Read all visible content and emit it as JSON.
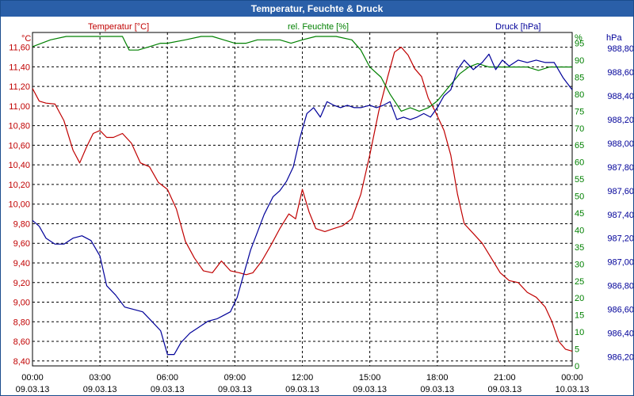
{
  "window": {
    "title": "Temperatur, Feuchte & Druck"
  },
  "colors": {
    "temperature": "#c00000",
    "humidity": "#008000",
    "pressure": "#000099",
    "grid": "#000000",
    "title_bar": "#2a5fa8"
  },
  "chart_data": {
    "type": "line",
    "title": "Temperatur, Feuchte & Druck",
    "grid": true,
    "x_ticks": [
      {
        "hours": 0,
        "time": "00:00",
        "date": "09.03.13"
      },
      {
        "hours": 3,
        "time": "03:00",
        "date": "09.03.13"
      },
      {
        "hours": 6,
        "time": "06:00",
        "date": "09.03.13"
      },
      {
        "hours": 9,
        "time": "09:00",
        "date": "09.03.13"
      },
      {
        "hours": 12,
        "time": "12:00",
        "date": "09.03.13"
      },
      {
        "hours": 15,
        "time": "15:00",
        "date": "09.03.13"
      },
      {
        "hours": 18,
        "time": "18:00",
        "date": "09.03.13"
      },
      {
        "hours": 21,
        "time": "21:00",
        "date": "09.03.13"
      },
      {
        "hours": 24,
        "time": "00:00",
        "date": "10.03.13"
      }
    ],
    "xlim": [
      0,
      24
    ],
    "axes": {
      "temperature": {
        "label": "Temperatur [°C]",
        "unit": "°C",
        "ylim": [
          8.35,
          11.75
        ],
        "ticks": [
          "8,40",
          "8,60",
          "8,80",
          "9,00",
          "9,20",
          "9,40",
          "9,60",
          "9,80",
          "10,00",
          "10,20",
          "10,40",
          "10,60",
          "10,80",
          "11,00",
          "11,20",
          "11,40",
          "11,60"
        ],
        "tick_values": [
          8.4,
          8.6,
          8.8,
          9.0,
          9.2,
          9.4,
          9.6,
          9.8,
          10.0,
          10.2,
          10.4,
          10.6,
          10.8,
          11.0,
          11.2,
          11.4,
          11.6
        ]
      },
      "humidity": {
        "label": "rel. Feuchte [%]",
        "unit": "%",
        "ylim": [
          0,
          98.17
        ],
        "ticks": [
          "0",
          "5",
          "10",
          "15",
          "20",
          "25",
          "30",
          "35",
          "40",
          "45",
          "50",
          "55",
          "60",
          "65",
          "70",
          "75",
          "80",
          "85",
          "90",
          "95"
        ],
        "tick_values": [
          0,
          5,
          10,
          15,
          20,
          25,
          30,
          35,
          40,
          45,
          50,
          55,
          60,
          65,
          70,
          75,
          80,
          85,
          90,
          95
        ]
      },
      "pressure": {
        "label": "Druck [hPa]",
        "unit": "hPa",
        "ylim": [
          986.124,
          988.933
        ],
        "ticks": [
          "986,20",
          "986,40",
          "986,60",
          "986,80",
          "987,00",
          "987,20",
          "987,40",
          "987,60",
          "987,80",
          "988,00",
          "988,20",
          "988,40",
          "988,60",
          "988,80"
        ],
        "tick_values": [
          986.2,
          986.4,
          986.6,
          986.8,
          987.0,
          987.2,
          987.4,
          987.6,
          987.8,
          988.0,
          988.2,
          988.4,
          988.6,
          988.8
        ]
      }
    },
    "series": [
      {
        "name": "Temperatur [°C]",
        "axis": "temperature",
        "points": [
          [
            0,
            11.18
          ],
          [
            0.3,
            11.05
          ],
          [
            0.6,
            11.03
          ],
          [
            1.0,
            11.02
          ],
          [
            1.4,
            10.85
          ],
          [
            1.8,
            10.55
          ],
          [
            2.1,
            10.42
          ],
          [
            2.4,
            10.58
          ],
          [
            2.7,
            10.72
          ],
          [
            3.0,
            10.75
          ],
          [
            3.3,
            10.68
          ],
          [
            3.6,
            10.68
          ],
          [
            4.0,
            10.72
          ],
          [
            4.4,
            10.62
          ],
          [
            4.8,
            10.42
          ],
          [
            5.2,
            10.38
          ],
          [
            5.6,
            10.22
          ],
          [
            6.0,
            10.15
          ],
          [
            6.4,
            9.95
          ],
          [
            6.8,
            9.62
          ],
          [
            7.2,
            9.45
          ],
          [
            7.6,
            9.32
          ],
          [
            8.0,
            9.3
          ],
          [
            8.4,
            9.42
          ],
          [
            8.8,
            9.32
          ],
          [
            9.2,
            9.3
          ],
          [
            9.5,
            9.28
          ],
          [
            9.8,
            9.3
          ],
          [
            10.2,
            9.42
          ],
          [
            10.6,
            9.58
          ],
          [
            11.0,
            9.75
          ],
          [
            11.4,
            9.9
          ],
          [
            11.7,
            9.85
          ],
          [
            12.0,
            10.15
          ],
          [
            12.3,
            9.92
          ],
          [
            12.6,
            9.75
          ],
          [
            13.0,
            9.72
          ],
          [
            13.4,
            9.75
          ],
          [
            13.8,
            9.78
          ],
          [
            14.2,
            9.85
          ],
          [
            14.6,
            10.1
          ],
          [
            15.0,
            10.5
          ],
          [
            15.4,
            10.95
          ],
          [
            15.8,
            11.3
          ],
          [
            16.1,
            11.55
          ],
          [
            16.4,
            11.6
          ],
          [
            16.7,
            11.52
          ],
          [
            17.0,
            11.38
          ],
          [
            17.3,
            11.3
          ],
          [
            17.6,
            11.08
          ],
          [
            17.9,
            10.95
          ],
          [
            18.3,
            10.75
          ],
          [
            18.6,
            10.5
          ],
          [
            18.9,
            10.1
          ],
          [
            19.2,
            9.8
          ],
          [
            19.6,
            9.7
          ],
          [
            20.0,
            9.6
          ],
          [
            20.4,
            9.45
          ],
          [
            20.8,
            9.3
          ],
          [
            21.2,
            9.22
          ],
          [
            21.6,
            9.2
          ],
          [
            22.0,
            9.1
          ],
          [
            22.4,
            9.05
          ],
          [
            22.8,
            8.95
          ],
          [
            23.1,
            8.8
          ],
          [
            23.4,
            8.6
          ],
          [
            23.7,
            8.52
          ],
          [
            24.0,
            8.5
          ]
        ]
      },
      {
        "name": "rel. Feuchte [%]",
        "axis": "humidity",
        "points": [
          [
            0,
            94
          ],
          [
            0.8,
            96
          ],
          [
            1.5,
            97
          ],
          [
            3.0,
            97
          ],
          [
            4.0,
            97
          ],
          [
            4.3,
            93
          ],
          [
            4.7,
            93
          ],
          [
            5.2,
            94
          ],
          [
            5.7,
            95
          ],
          [
            6.0,
            95
          ],
          [
            6.8,
            96
          ],
          [
            7.5,
            97
          ],
          [
            8.0,
            97
          ],
          [
            8.5,
            96
          ],
          [
            9.0,
            95
          ],
          [
            9.5,
            95
          ],
          [
            10.0,
            96
          ],
          [
            10.5,
            96
          ],
          [
            11.0,
            96
          ],
          [
            11.5,
            95
          ],
          [
            12.0,
            96
          ],
          [
            12.6,
            97
          ],
          [
            13.5,
            97
          ],
          [
            14.2,
            96
          ],
          [
            14.6,
            93
          ],
          [
            15.0,
            88
          ],
          [
            15.5,
            85
          ],
          [
            15.9,
            80
          ],
          [
            16.4,
            75
          ],
          [
            16.8,
            76
          ],
          [
            17.2,
            75
          ],
          [
            17.6,
            76
          ],
          [
            18.0,
            78
          ],
          [
            18.5,
            82
          ],
          [
            19.0,
            86
          ],
          [
            19.4,
            88
          ],
          [
            19.8,
            89
          ],
          [
            20.3,
            88
          ],
          [
            21.0,
            88
          ],
          [
            21.5,
            88
          ],
          [
            22.0,
            88
          ],
          [
            22.5,
            87
          ],
          [
            23.0,
            88
          ],
          [
            23.5,
            88
          ],
          [
            24.0,
            88
          ]
        ]
      },
      {
        "name": "Druck [hPa]",
        "axis": "pressure",
        "points": [
          [
            0,
            987.35
          ],
          [
            0.3,
            987.3
          ],
          [
            0.6,
            987.2
          ],
          [
            1.0,
            987.15
          ],
          [
            1.4,
            987.15
          ],
          [
            1.8,
            987.2
          ],
          [
            2.2,
            987.22
          ],
          [
            2.6,
            987.18
          ],
          [
            3.0,
            987.05
          ],
          [
            3.3,
            986.8
          ],
          [
            3.7,
            986.72
          ],
          [
            4.1,
            986.62
          ],
          [
            4.5,
            986.6
          ],
          [
            4.9,
            986.58
          ],
          [
            5.3,
            986.5
          ],
          [
            5.7,
            986.42
          ],
          [
            6.0,
            986.22
          ],
          [
            6.3,
            986.22
          ],
          [
            6.6,
            986.32
          ],
          [
            7.0,
            986.4
          ],
          [
            7.4,
            986.45
          ],
          [
            7.8,
            986.5
          ],
          [
            8.2,
            986.52
          ],
          [
            8.5,
            986.55
          ],
          [
            8.8,
            986.58
          ],
          [
            9.1,
            986.7
          ],
          [
            9.4,
            986.9
          ],
          [
            9.7,
            987.1
          ],
          [
            10.0,
            987.25
          ],
          [
            10.3,
            987.4
          ],
          [
            10.7,
            987.55
          ],
          [
            11.0,
            987.6
          ],
          [
            11.3,
            987.68
          ],
          [
            11.6,
            987.8
          ],
          [
            11.9,
            988.05
          ],
          [
            12.2,
            988.25
          ],
          [
            12.5,
            988.3
          ],
          [
            12.8,
            988.22
          ],
          [
            13.1,
            988.35
          ],
          [
            13.4,
            988.32
          ],
          [
            13.7,
            988.3
          ],
          [
            14.0,
            988.32
          ],
          [
            14.3,
            988.3
          ],
          [
            14.6,
            988.3
          ],
          [
            15.0,
            988.32
          ],
          [
            15.3,
            988.3
          ],
          [
            15.6,
            988.32
          ],
          [
            15.9,
            988.35
          ],
          [
            16.2,
            988.2
          ],
          [
            16.5,
            988.22
          ],
          [
            16.8,
            988.2
          ],
          [
            17.1,
            988.22
          ],
          [
            17.4,
            988.25
          ],
          [
            17.7,
            988.22
          ],
          [
            18.0,
            988.3
          ],
          [
            18.3,
            988.4
          ],
          [
            18.6,
            988.45
          ],
          [
            18.9,
            988.62
          ],
          [
            19.2,
            988.7
          ],
          [
            19.6,
            988.62
          ],
          [
            20.0,
            988.68
          ],
          [
            20.3,
            988.75
          ],
          [
            20.6,
            988.62
          ],
          [
            20.9,
            988.7
          ],
          [
            21.2,
            988.65
          ],
          [
            21.6,
            988.7
          ],
          [
            22.0,
            988.68
          ],
          [
            22.4,
            988.7
          ],
          [
            22.8,
            988.68
          ],
          [
            23.2,
            988.68
          ],
          [
            23.6,
            988.55
          ],
          [
            24.0,
            988.45
          ]
        ]
      }
    ]
  }
}
